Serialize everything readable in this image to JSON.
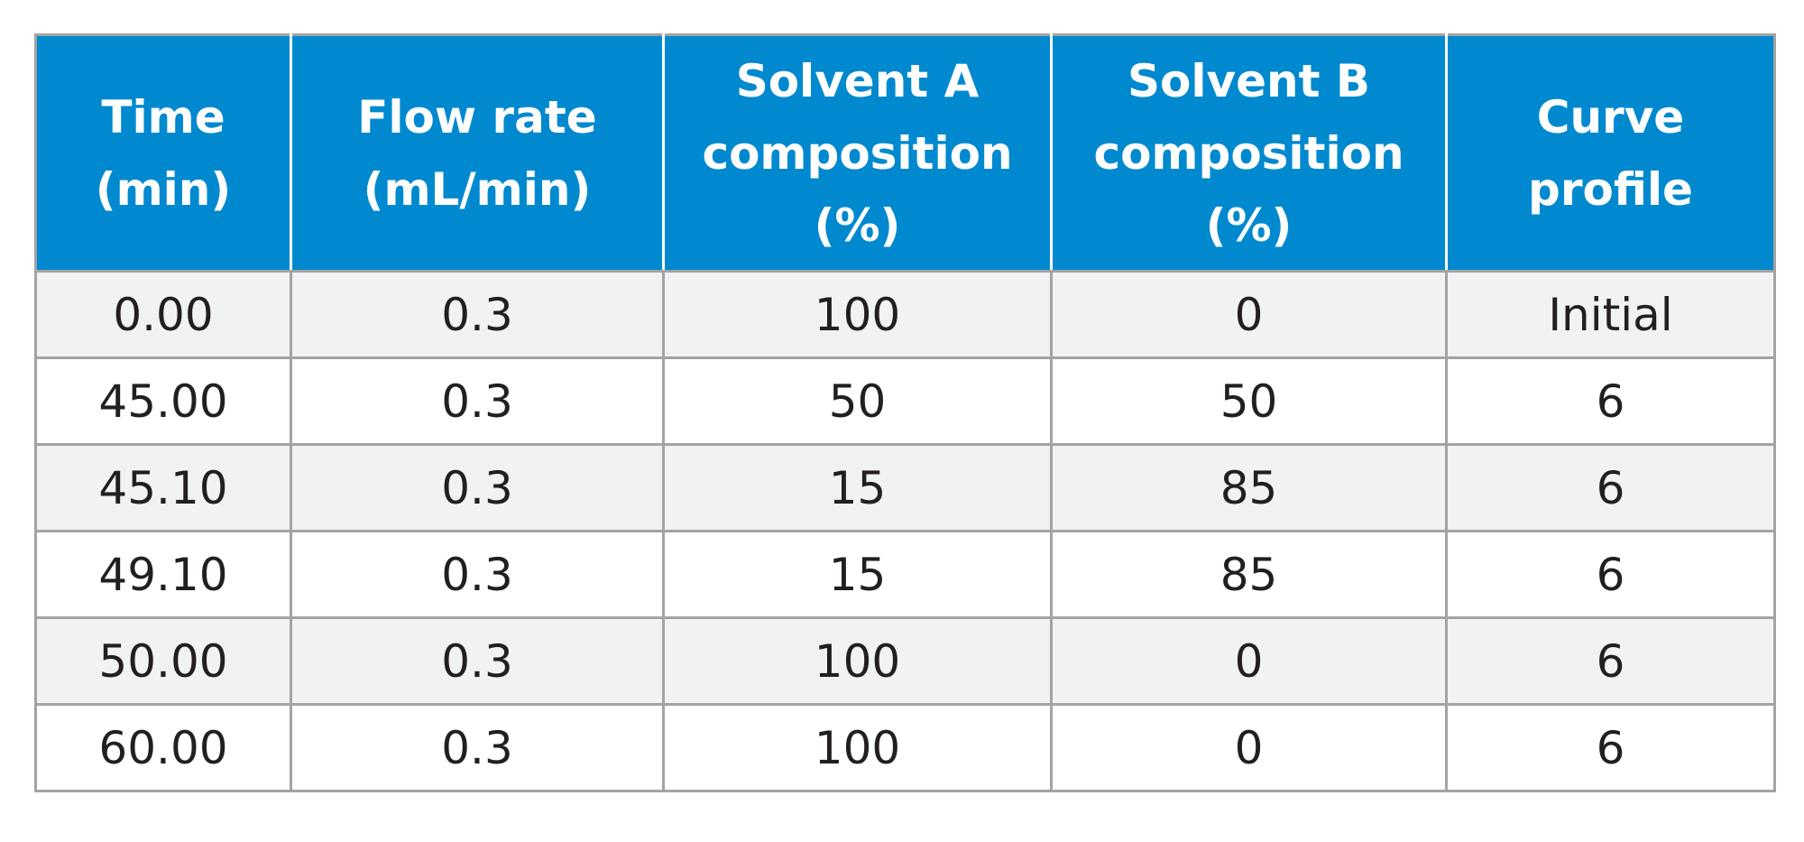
{
  "table": {
    "columns": [
      "Time\n(min)",
      "Flow rate\n(mL/min)",
      "Solvent A\ncomposition\n(%)",
      "Solvent B\ncomposition\n(%)",
      "Curve\nprofile"
    ],
    "rows": [
      [
        "0.00",
        "0.3",
        "100",
        "0",
        "Initial"
      ],
      [
        "45.00",
        "0.3",
        "50",
        "50",
        "6"
      ],
      [
        "45.10",
        "0.3",
        "15",
        "85",
        "6"
      ],
      [
        "49.10",
        "0.3",
        "15",
        "85",
        "6"
      ],
      [
        "50.00",
        "0.3",
        "100",
        "0",
        "6"
      ],
      [
        "60.00",
        "0.3",
        "100",
        "0",
        "6"
      ]
    ]
  },
  "colors": {
    "header_bg": "#0089cf",
    "header_text": "#ffffff",
    "row_alt_bg": "#f1f2f4",
    "grid_line": "#a3a3a3",
    "body_text": "#231f20"
  }
}
